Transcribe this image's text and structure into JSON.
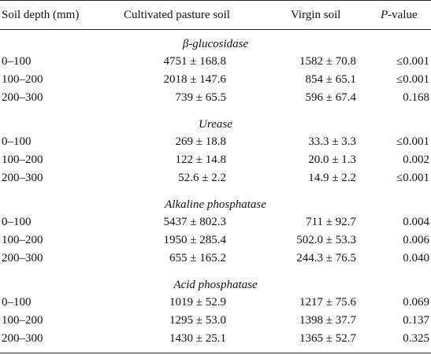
{
  "header": {
    "col1": "Soil depth (mm)",
    "col2": "Cultivated pasture soil",
    "col3": "Virgin soil",
    "col4_italic": "P",
    "col4_rest": "-value"
  },
  "sections": [
    {
      "title": "β-glucosidase",
      "rows": [
        {
          "depth": "0–100",
          "cultivated": "4751 ± 168.8",
          "virgin": "1582 ± 70.8",
          "p": "≤0.001"
        },
        {
          "depth": "100–200",
          "cultivated": "2018 ± 147.6",
          "virgin": "854 ± 65.1",
          "p": "≤0.001"
        },
        {
          "depth": "200–300",
          "cultivated": "739 ± 65.5",
          "virgin": "596 ± 67.4",
          "p": "0.168"
        }
      ]
    },
    {
      "title": "Urease",
      "rows": [
        {
          "depth": "0–100",
          "cultivated": "269 ± 18.8",
          "virgin": "33.3 ± 3.3",
          "p": "≤0.001"
        },
        {
          "depth": "100–200",
          "cultivated": "122 ± 14.8",
          "virgin": "20.0 ± 1.3",
          "p": "0.002"
        },
        {
          "depth": "200–300",
          "cultivated": "52.6 ± 2.2",
          "virgin": "14.9 ± 2.2",
          "p": "≤0.001"
        }
      ]
    },
    {
      "title": "Alkaline phosphatase",
      "rows": [
        {
          "depth": "0–100",
          "cultivated": "5437 ± 802.3",
          "virgin": "711 ± 92.7",
          "p": "0.004"
        },
        {
          "depth": "100–200",
          "cultivated": "1950 ± 285.4",
          "virgin": "502.0 ± 53.3",
          "p": "0.006"
        },
        {
          "depth": "200–300",
          "cultivated": "655 ± 165.2",
          "virgin": "244.3 ± 76.5",
          "p": "0.040"
        }
      ]
    },
    {
      "title": "Acid phosphatase",
      "rows": [
        {
          "depth": "0–100",
          "cultivated": "1019 ± 52.9",
          "virgin": "1217 ± 75.6",
          "p": "0.069"
        },
        {
          "depth": "100–200",
          "cultivated": "1295 ± 53.0",
          "virgin": "1398 ± 37.7",
          "p": "0.137"
        },
        {
          "depth": "200–300",
          "cultivated": "1430 ± 25.1",
          "virgin": "1365 ± 52.7",
          "p": "0.325"
        }
      ]
    }
  ]
}
